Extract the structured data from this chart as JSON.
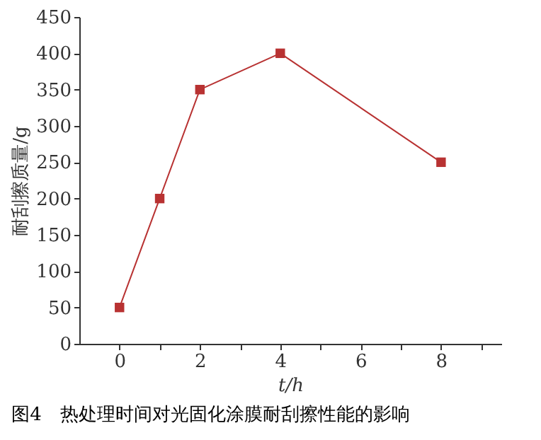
{
  "chart_data": {
    "type": "line",
    "title": "图4　热处理时间对光固化涂膜耐刮擦性能的影响",
    "xlabel": "t/h",
    "ylabel": "耐刮擦质量/g",
    "x": [
      0,
      1,
      2,
      4,
      8
    ],
    "series": [
      {
        "color": "#b83232",
        "values": [
          50,
          200,
          350,
          400,
          250
        ]
      }
    ],
    "xlim": [
      -1,
      9.5
    ],
    "xticks": [
      0,
      {
        "value": 1,
        "label": null
      },
      2,
      {
        "value": 3,
        "label": null
      },
      4,
      {
        "value": 5,
        "label": null
      },
      6,
      {
        "value": 7,
        "label": null
      },
      8,
      {
        "value": 9,
        "label": null
      }
    ],
    "ylim": [
      0,
      450
    ],
    "yticks": [
      0,
      50,
      100,
      150,
      200,
      250,
      300,
      350,
      400,
      450
    ],
    "marker": "square",
    "line_style": "solid",
    "grid": false,
    "legend": false
  }
}
